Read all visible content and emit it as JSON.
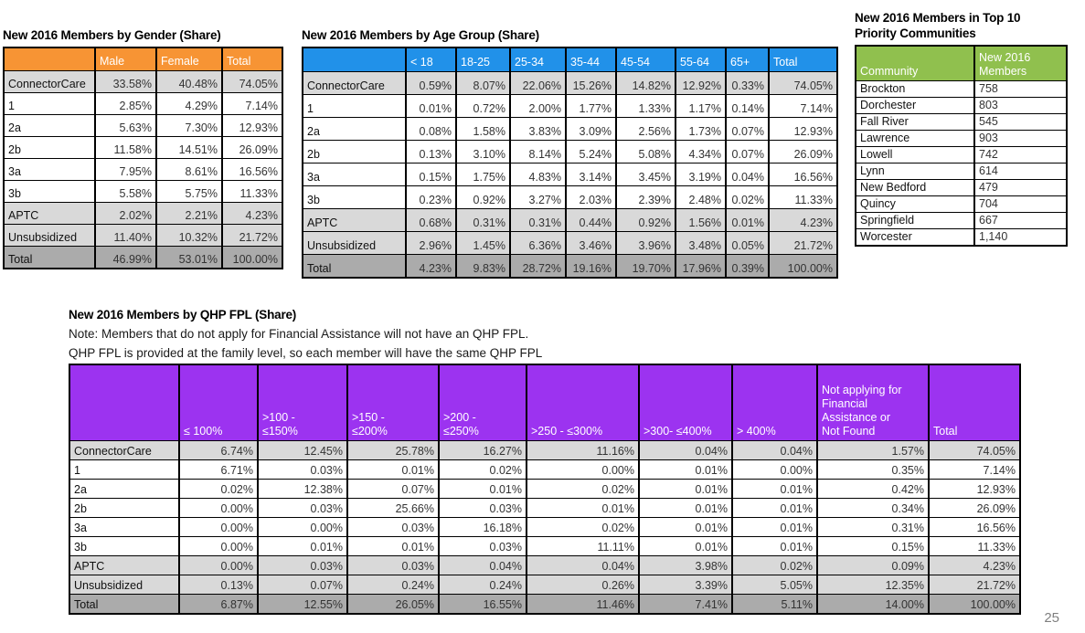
{
  "page_number": "25",
  "gender_table": {
    "title": "New 2016 Members by Gender (Share)",
    "header_bg": "#F79434",
    "columns": [
      "",
      "Male",
      "Female",
      "Total"
    ],
    "rows": [
      {
        "label": "ConnectorCare",
        "shade": "light",
        "values": [
          "33.58%",
          "40.48%",
          "74.05%"
        ]
      },
      {
        "label": "1",
        "shade": "none",
        "values": [
          "2.85%",
          "4.29%",
          "7.14%"
        ]
      },
      {
        "label": "2a",
        "shade": "none",
        "values": [
          "5.63%",
          "7.30%",
          "12.93%"
        ]
      },
      {
        "label": "2b",
        "shade": "none",
        "values": [
          "11.58%",
          "14.51%",
          "26.09%"
        ]
      },
      {
        "label": "3a",
        "shade": "none",
        "values": [
          "7.95%",
          "8.61%",
          "16.56%"
        ]
      },
      {
        "label": "3b",
        "shade": "none",
        "values": [
          "5.58%",
          "5.75%",
          "11.33%"
        ]
      },
      {
        "label": "APTC",
        "shade": "light",
        "values": [
          "2.02%",
          "2.21%",
          "4.23%"
        ]
      },
      {
        "label": "Unsubsidized",
        "shade": "light",
        "values": [
          "11.40%",
          "10.32%",
          "21.72%"
        ]
      },
      {
        "label": "Total",
        "shade": "dark",
        "values": [
          "46.99%",
          "53.01%",
          "100.00%"
        ]
      }
    ]
  },
  "age_table": {
    "title": "New 2016 Members by Age Group (Share)",
    "header_bg": "#2191E9",
    "columns": [
      "",
      "< 18",
      "18-25",
      "25-34",
      "35-44",
      "45-54",
      "55-64",
      "65+",
      "Total"
    ],
    "rows": [
      {
        "label": "ConnectorCare",
        "shade": "light",
        "values": [
          "0.59%",
          "8.07%",
          "22.06%",
          "15.26%",
          "14.82%",
          "12.92%",
          "0.33%",
          "74.05%"
        ]
      },
      {
        "label": "1",
        "shade": "none",
        "values": [
          "0.01%",
          "0.72%",
          "2.00%",
          "1.77%",
          "1.33%",
          "1.17%",
          "0.14%",
          "7.14%"
        ]
      },
      {
        "label": "2a",
        "shade": "none",
        "values": [
          "0.08%",
          "1.58%",
          "3.83%",
          "3.09%",
          "2.56%",
          "1.73%",
          "0.07%",
          "12.93%"
        ]
      },
      {
        "label": "2b",
        "shade": "none",
        "values": [
          "0.13%",
          "3.10%",
          "8.14%",
          "5.24%",
          "5.08%",
          "4.34%",
          "0.07%",
          "26.09%"
        ]
      },
      {
        "label": "3a",
        "shade": "none",
        "values": [
          "0.15%",
          "1.75%",
          "4.83%",
          "3.14%",
          "3.45%",
          "3.19%",
          "0.04%",
          "16.56%"
        ]
      },
      {
        "label": "3b",
        "shade": "none",
        "values": [
          "0.23%",
          "0.92%",
          "3.27%",
          "2.03%",
          "2.39%",
          "2.48%",
          "0.02%",
          "11.33%"
        ]
      },
      {
        "label": "APTC",
        "shade": "light",
        "values": [
          "0.68%",
          "0.31%",
          "0.31%",
          "0.44%",
          "0.92%",
          "1.56%",
          "0.01%",
          "4.23%"
        ]
      },
      {
        "label": "Unsubsidized",
        "shade": "light",
        "values": [
          "2.96%",
          "1.45%",
          "6.36%",
          "3.46%",
          "3.96%",
          "3.48%",
          "0.05%",
          "21.72%"
        ]
      },
      {
        "label": "Total",
        "shade": "dark",
        "values": [
          "4.23%",
          "9.83%",
          "28.72%",
          "19.16%",
          "19.70%",
          "17.96%",
          "0.39%",
          "100.00%"
        ]
      }
    ]
  },
  "communities_table": {
    "title_line1": "New 2016 Members in Top 10",
    "title_line2": "Priority Communities",
    "header_bg": "#90C04E",
    "columns": [
      "Community",
      "New 2016\nMembers"
    ],
    "rows": [
      {
        "label": "Brockton",
        "shade": "none",
        "values": [
          "758"
        ]
      },
      {
        "label": "Dorchester",
        "shade": "none",
        "values": [
          "803"
        ]
      },
      {
        "label": "Fall River",
        "shade": "none",
        "values": [
          "545"
        ]
      },
      {
        "label": "Lawrence",
        "shade": "none",
        "values": [
          "903"
        ]
      },
      {
        "label": "Lowell",
        "shade": "none",
        "values": [
          "742"
        ]
      },
      {
        "label": "Lynn",
        "shade": "none",
        "values": [
          "614"
        ]
      },
      {
        "label": "New Bedford",
        "shade": "none",
        "values": [
          "479"
        ]
      },
      {
        "label": "Quincy",
        "shade": "none",
        "values": [
          "704"
        ]
      },
      {
        "label": "Springfield",
        "shade": "none",
        "values": [
          "667"
        ]
      },
      {
        "label": "Worcester",
        "shade": "none",
        "values": [
          "1,140"
        ]
      }
    ]
  },
  "qhp_table": {
    "title": "New 2016 Members by QHP FPL (Share)",
    "note_line1": "Note: Members that do not apply for Financial Assistance will not have an QHP FPL.",
    "note_line2": "QHP FPL is provided at the family level, so each member will have the same QHP FPL",
    "header_bg": "#9C33F0",
    "columns": [
      "",
      "≤ 100%",
      ">100 -\n≤150%",
      ">150 -\n≤200%",
      ">200 -\n≤250%",
      ">250 - ≤300%",
      ">300- ≤400%",
      "> 400%",
      "Not applying for\nFinancial\nAssistance or\nNot Found",
      "Total"
    ],
    "rows": [
      {
        "label": "ConnectorCare",
        "shade": "light",
        "values": [
          "6.74%",
          "12.45%",
          "25.78%",
          "16.27%",
          "11.16%",
          "0.04%",
          "0.04%",
          "1.57%",
          "74.05%"
        ]
      },
      {
        "label": "1",
        "shade": "none",
        "values": [
          "6.71%",
          "0.03%",
          "0.01%",
          "0.02%",
          "0.00%",
          "0.01%",
          "0.00%",
          "0.35%",
          "7.14%"
        ]
      },
      {
        "label": "2a",
        "shade": "none",
        "values": [
          "0.02%",
          "12.38%",
          "0.07%",
          "0.01%",
          "0.02%",
          "0.01%",
          "0.01%",
          "0.42%",
          "12.93%"
        ]
      },
      {
        "label": "2b",
        "shade": "none",
        "values": [
          "0.00%",
          "0.03%",
          "25.66%",
          "0.03%",
          "0.01%",
          "0.01%",
          "0.01%",
          "0.34%",
          "26.09%"
        ]
      },
      {
        "label": "3a",
        "shade": "none",
        "values": [
          "0.00%",
          "0.00%",
          "0.03%",
          "16.18%",
          "0.02%",
          "0.01%",
          "0.01%",
          "0.31%",
          "16.56%"
        ]
      },
      {
        "label": "3b",
        "shade": "none",
        "values": [
          "0.00%",
          "0.01%",
          "0.01%",
          "0.03%",
          "11.11%",
          "0.01%",
          "0.01%",
          "0.15%",
          "11.33%"
        ]
      },
      {
        "label": "APTC",
        "shade": "light",
        "values": [
          "0.00%",
          "0.03%",
          "0.03%",
          "0.04%",
          "0.04%",
          "3.98%",
          "0.02%",
          "0.09%",
          "4.23%"
        ]
      },
      {
        "label": "Unsubsidized",
        "shade": "light",
        "values": [
          "0.13%",
          "0.07%",
          "0.24%",
          "0.24%",
          "0.26%",
          "3.39%",
          "5.05%",
          "12.35%",
          "21.72%"
        ]
      },
      {
        "label": "Total",
        "shade": "dark",
        "values": [
          "6.87%",
          "12.55%",
          "26.05%",
          "16.55%",
          "11.46%",
          "7.41%",
          "5.11%",
          "14.00%",
          "100.00%"
        ]
      }
    ]
  }
}
